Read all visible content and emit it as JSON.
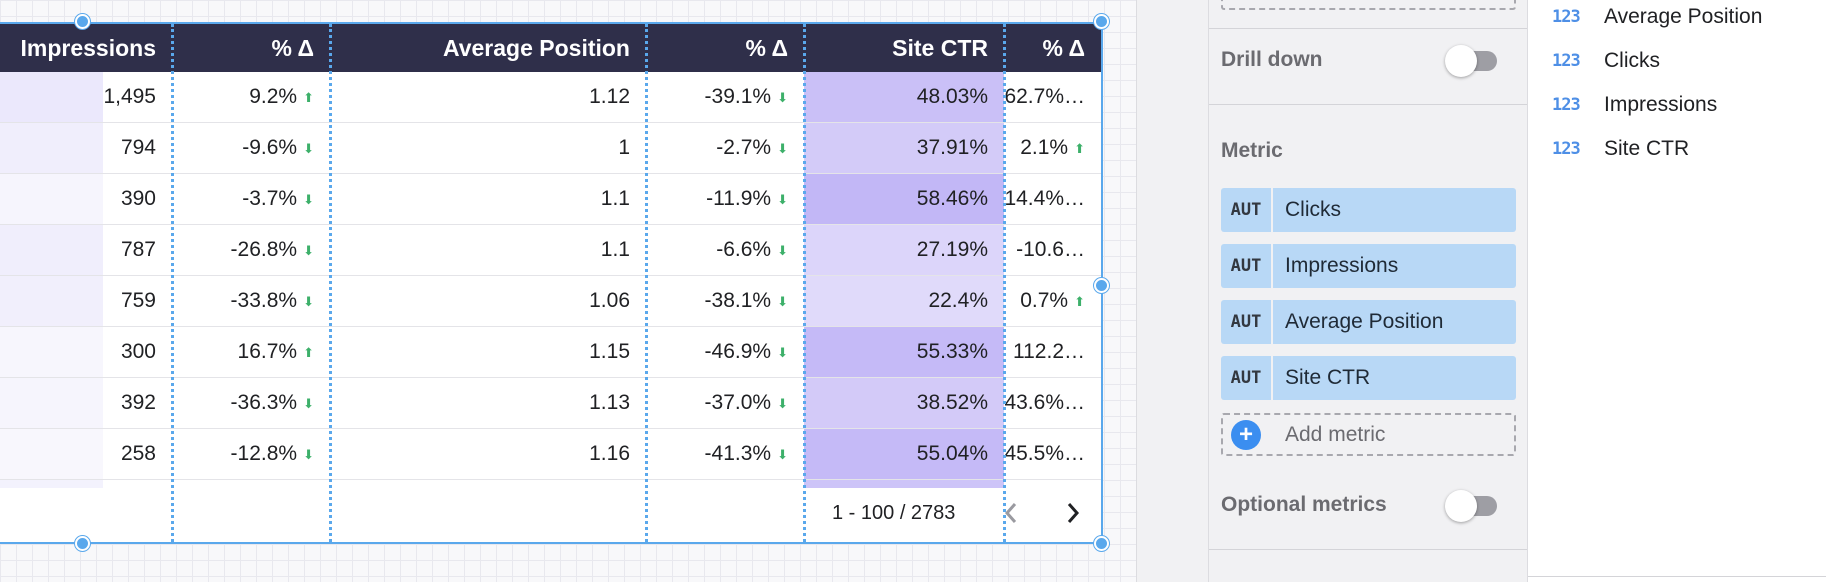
{
  "table": {
    "headers": [
      "Impressions",
      "% Δ",
      "Average Position",
      "% Δ",
      "Site CTR",
      "% Δ"
    ],
    "rows": [
      {
        "impressions": "1,495",
        "imp_delta": "9.2%",
        "imp_dir": "up",
        "avg_pos": "1.12",
        "pos_delta": "-39.1%",
        "pos_dir": "down",
        "ctr": "48.03%",
        "ctr_level": 0.62,
        "ctr_delta": "62.7%…",
        "ctr_dir": ""
      },
      {
        "impressions": "794",
        "imp_delta": "-9.6%",
        "imp_dir": "down",
        "avg_pos": "1",
        "pos_delta": "-2.7%",
        "pos_dir": "down",
        "ctr": "37.91%",
        "ctr_level": 0.42,
        "ctr_delta": "2.1%",
        "ctr_dir": "up"
      },
      {
        "impressions": "390",
        "imp_delta": "-3.7%",
        "imp_dir": "down",
        "avg_pos": "1.1",
        "pos_delta": "-11.9%",
        "pos_dir": "down",
        "ctr": "58.46%",
        "ctr_level": 0.8,
        "ctr_delta": "14.4%…",
        "ctr_dir": ""
      },
      {
        "impressions": "787",
        "imp_delta": "-26.8%",
        "imp_dir": "down",
        "avg_pos": "1.1",
        "pos_delta": "-6.6%",
        "pos_dir": "down",
        "ctr": "27.19%",
        "ctr_level": 0.22,
        "ctr_delta": "-10.6…",
        "ctr_dir": ""
      },
      {
        "impressions": "759",
        "imp_delta": "-33.8%",
        "imp_dir": "down",
        "avg_pos": "1.06",
        "pos_delta": "-38.1%",
        "pos_dir": "down",
        "ctr": "22.4%",
        "ctr_level": 0.14,
        "ctr_delta": "0.7%",
        "ctr_dir": "up"
      },
      {
        "impressions": "300",
        "imp_delta": "16.7%",
        "imp_dir": "up",
        "avg_pos": "1.15",
        "pos_delta": "-46.9%",
        "pos_dir": "down",
        "ctr": "55.33%",
        "ctr_level": 0.74,
        "ctr_delta": "112.2…",
        "ctr_dir": ""
      },
      {
        "impressions": "392",
        "imp_delta": "-36.3%",
        "imp_dir": "down",
        "avg_pos": "1.13",
        "pos_delta": "-37.0%",
        "pos_dir": "down",
        "ctr": "38.52%",
        "ctr_level": 0.43,
        "ctr_delta": "43.6%…",
        "ctr_dir": ""
      },
      {
        "impressions": "258",
        "imp_delta": "-12.8%",
        "imp_dir": "down",
        "avg_pos": "1.16",
        "pos_delta": "-41.3%",
        "pos_dir": "down",
        "ctr": "55.04%",
        "ctr_level": 0.73,
        "ctr_delta": "45.5%…",
        "ctr_dir": ""
      }
    ],
    "pager": "1 - 100 / 2783"
  },
  "panel": {
    "drill_down_label": "Drill down",
    "metric_label": "Metric",
    "metrics": [
      {
        "type": "AUT",
        "name": "Clicks"
      },
      {
        "type": "AUT",
        "name": "Impressions"
      },
      {
        "type": "AUT",
        "name": "Average Position"
      },
      {
        "type": "AUT",
        "name": "Site CTR"
      }
    ],
    "add_metric_label": "Add metric",
    "optional_metrics_label": "Optional metrics"
  },
  "fields": [
    {
      "type": "123",
      "name": "Average Position"
    },
    {
      "type": "123",
      "name": "Clicks"
    },
    {
      "type": "123",
      "name": "Impressions"
    },
    {
      "type": "123",
      "name": "Site CTR"
    }
  ],
  "colors": {
    "header_bg": "#2f2f4a",
    "selection": "#5aa8ec",
    "up_arrow": "#3db06a",
    "down_arrow": "#3db06a",
    "ctr_heat_low": "#e6e1fb",
    "ctr_heat_high": "#b9acf5",
    "metric_chip": "#b8d8f6"
  }
}
